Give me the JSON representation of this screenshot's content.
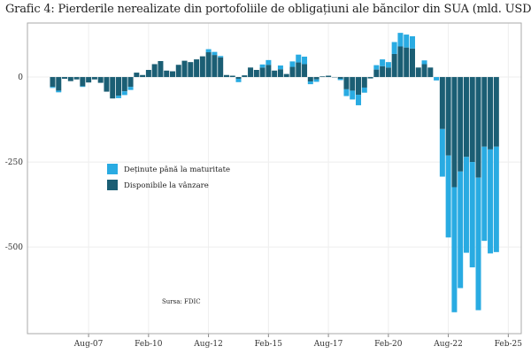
{
  "chart_data": {
    "type": "bar",
    "stacked": true,
    "title": "Grafic 4: Pierderile nerealizate din portofoliile de obligațiuni ale băncilor din SUA (mld. USD)",
    "source_note": "Sursa: FDIC",
    "xlabel": "",
    "ylabel": "",
    "x_start_quarter": "2006Q1",
    "x_frequency": "quarterly",
    "x_ticks": [
      "Aug-07",
      "Feb-10",
      "Aug-12",
      "Feb-15",
      "Aug-17",
      "Feb-20",
      "Aug-22",
      "Feb-25"
    ],
    "y_ticks": [
      0,
      -250,
      -500
    ],
    "ylim": [
      -755,
      159
    ],
    "grid": true,
    "legend_position": "middle-left",
    "series": [
      {
        "name": "Deținute până la maturitate",
        "color": "#29abe2",
        "values": [
          -3,
          -5,
          0,
          0,
          0,
          -2,
          0,
          0,
          0,
          0,
          0,
          -7,
          -11,
          -9,
          0,
          0,
          0,
          0,
          0,
          0,
          0,
          0,
          0,
          0,
          0,
          0,
          9,
          9,
          4,
          0,
          0,
          -10,
          0,
          0,
          0,
          9,
          14,
          0,
          11,
          0,
          16,
          23,
          22,
          -8,
          -7,
          0,
          0,
          0,
          -4,
          -20,
          -26,
          -31,
          -15,
          0,
          13,
          20,
          16,
          35,
          40,
          38,
          36,
          0,
          11,
          0,
          -10,
          -140,
          -241,
          -368,
          -343,
          -282,
          -310,
          -390,
          -277,
          -306,
          -310
        ]
      },
      {
        "name": "Disponibile la vânzare",
        "color": "#1b5e74",
        "values": [
          -29,
          -40,
          -5,
          -12,
          -7,
          -27,
          -16,
          -7,
          -17,
          -43,
          -63,
          -55,
          -42,
          -29,
          13,
          6,
          21,
          38,
          47,
          19,
          17,
          36,
          48,
          44,
          52,
          61,
          73,
          65,
          58,
          6,
          4,
          -5,
          5,
          28,
          21,
          28,
          36,
          19,
          23,
          9,
          30,
          43,
          38,
          -13,
          -7,
          2,
          4,
          -1,
          -5,
          -36,
          -40,
          -52,
          -31,
          -4,
          22,
          32,
          28,
          68,
          90,
          87,
          84,
          28,
          38,
          28,
          0,
          -153,
          -231,
          -324,
          -278,
          -235,
          -250,
          -296,
          -205,
          -213,
          -205
        ]
      }
    ]
  }
}
